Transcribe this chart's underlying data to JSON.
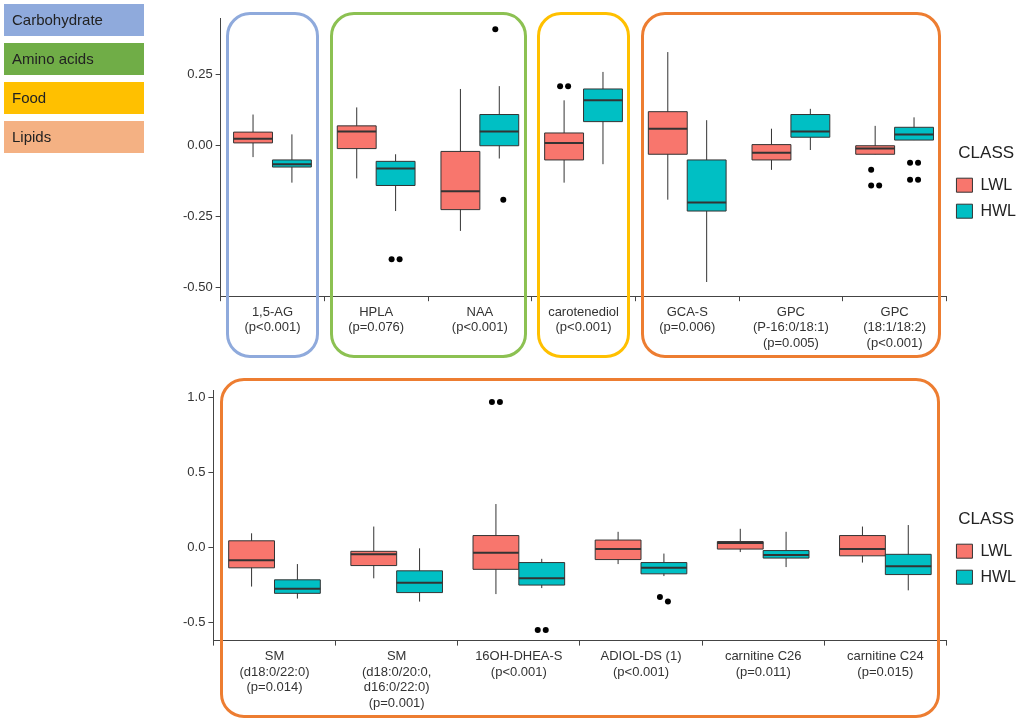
{
  "chart_data": [
    {
      "type": "box",
      "categories": [
        "1,5-AG\n(p<0.001)",
        "HPLA\n(p=0.076)",
        "NAA\n(p<0.001)",
        "carotenediol\n(p<0.001)",
        "GCA-S\n(p=0.006)",
        "GPC\n(P-16:0/18:1)\n(p=0.005)",
        "GPC\n(18:1/18:2)\n(p<0.001)"
      ],
      "ylim": [
        -0.53,
        0.45
      ],
      "yticks": [
        0.25,
        {
          "value": 0,
          "label": "0.00"
        },
        -0.25,
        {
          "value": -0.5,
          "label": "-0.50"
        }
      ],
      "legend": "right",
      "legend_title": "CLASS",
      "annotations": [
        "Carbohydrate",
        "Amino acids",
        "Food",
        "Lipids"
      ],
      "series": [
        {
          "name": "LWL",
          "color": "#f8766d",
          "boxes": [
            {
              "low": -0.04,
              "q1": 0.01,
              "median": 0.025,
              "q3": 0.048,
              "high": 0.11
            },
            {
              "low": -0.115,
              "q1": -0.01,
              "median": 0.05,
              "q3": 0.07,
              "high": 0.135
            },
            {
              "low": -0.3,
              "q1": -0.225,
              "median": -0.16,
              "q3": -0.02,
              "high": 0.2
            },
            {
              "low": -0.13,
              "q1": -0.05,
              "median": 0.01,
              "q3": 0.045,
              "high": 0.16,
              "outliers": [
                0.21,
                0.21
              ]
            },
            {
              "low": -0.19,
              "q1": -0.03,
              "median": 0.06,
              "q3": 0.12,
              "high": 0.33
            },
            {
              "low": -0.085,
              "q1": -0.05,
              "median": -0.025,
              "q3": 0.004,
              "high": 0.06
            },
            {
              "low": -0.03,
              "q1": -0.03,
              "median": -0.01,
              "q3": 0.0,
              "high": 0.07,
              "outliers": [
                -0.085,
                -0.14,
                -0.14
              ]
            }
          ]
        },
        {
          "name": "HWL",
          "color": "#00bfc4",
          "boxes": [
            {
              "low": -0.13,
              "q1": -0.075,
              "median": -0.065,
              "q3": -0.05,
              "high": 0.04
            },
            {
              "low": -0.23,
              "q1": -0.14,
              "median": -0.08,
              "q3": -0.055,
              "high": -0.03,
              "outliers": [
                -0.4,
                -0.4
              ]
            },
            {
              "low": -0.045,
              "q1": 0.0,
              "median": 0.05,
              "q3": 0.11,
              "high": 0.21,
              "outliers": [
                0.41,
                -0.19
              ]
            },
            {
              "low": -0.065,
              "q1": 0.085,
              "median": 0.16,
              "q3": 0.2,
              "high": 0.26
            },
            {
              "low": -0.48,
              "q1": -0.23,
              "median": -0.2,
              "q3": -0.05,
              "high": 0.09
            },
            {
              "low": -0.015,
              "q1": 0.03,
              "median": 0.05,
              "q3": 0.11,
              "high": 0.13
            },
            {
              "low": 0.02,
              "q1": 0.02,
              "median": 0.04,
              "q3": 0.065,
              "high": 0.1,
              "outliers": [
                -0.06,
                -0.06,
                -0.12,
                -0.12
              ]
            }
          ]
        }
      ]
    },
    {
      "type": "box",
      "categories": [
        "SM\n(d18:0/22:0)\n(p=0.014)",
        "SM\n(d18:0/20:0,\nd16:0/22:0)\n(p=0.001)",
        "16OH-DHEA-S\n(p<0.001)",
        "ADIOL-DS (1)\n(p<0.001)",
        "carnitine C26\n(p=0.011)",
        "carnitine C24\n(p=0.015)"
      ],
      "ylim": [
        -0.62,
        1.05
      ],
      "yticks": [
        {
          "value": 1,
          "label": "1.0"
        },
        0.5,
        {
          "value": 0,
          "label": "0.0"
        },
        -0.5
      ],
      "legend": "right",
      "legend_title": "CLASS",
      "series": [
        {
          "name": "LWL",
          "color": "#f8766d",
          "boxes": [
            {
              "low": -0.26,
              "q1": -0.135,
              "median": -0.085,
              "q3": 0.045,
              "high": 0.095
            },
            {
              "low": -0.205,
              "q1": -0.12,
              "median": -0.045,
              "q3": -0.025,
              "high": 0.14
            },
            {
              "low": -0.31,
              "q1": -0.145,
              "median": -0.035,
              "q3": 0.08,
              "high": 0.29,
              "outliers": [
                0.97,
                0.97
              ]
            },
            {
              "low": -0.11,
              "q1": -0.08,
              "median": -0.01,
              "q3": 0.05,
              "high": 0.105
            },
            {
              "low": -0.03,
              "q1": -0.01,
              "median": 0.03,
              "q3": 0.04,
              "high": 0.125
            },
            {
              "low": -0.1,
              "q1": -0.055,
              "median": -0.01,
              "q3": 0.08,
              "high": 0.14
            }
          ]
        },
        {
          "name": "HWL",
          "color": "#00bfc4",
          "boxes": [
            {
              "low": -0.34,
              "q1": -0.305,
              "median": -0.275,
              "q3": -0.215,
              "high": -0.11
            },
            {
              "low": -0.36,
              "q1": -0.3,
              "median": -0.235,
              "q3": -0.155,
              "high": -0.005
            },
            {
              "low": -0.27,
              "q1": -0.25,
              "median": -0.205,
              "q3": -0.1,
              "high": -0.075,
              "outliers": [
                -0.55,
                -0.55
              ]
            },
            {
              "low": -0.19,
              "q1": -0.175,
              "median": -0.135,
              "q3": -0.1,
              "high": -0.04,
              "outliers": [
                -0.33,
                -0.36
              ]
            },
            {
              "low": -0.13,
              "q1": -0.07,
              "median": -0.05,
              "q3": -0.02,
              "high": 0.105
            },
            {
              "low": -0.285,
              "q1": -0.18,
              "median": -0.125,
              "q3": -0.045,
              "high": 0.15
            }
          ]
        }
      ]
    }
  ]
}
